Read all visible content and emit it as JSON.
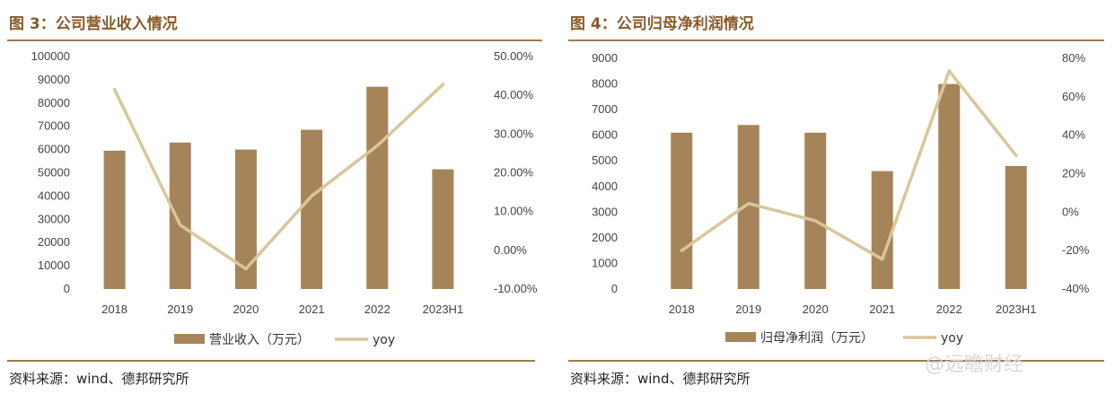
{
  "charts": [
    {
      "figure_title": "图 3：公司营业收入情况",
      "source": "资料来源：wind、德邦研究所",
      "legend": {
        "bar_label": "营业收入（万元）",
        "line_label": "yoy"
      }
    },
    {
      "figure_title": "图 4：公司归母净利润情况",
      "source": "资料来源：wind、德邦研究所",
      "legend": {
        "bar_label": "归母净利润（万元）",
        "line_label": "yoy"
      }
    }
  ],
  "watermark": "@远瞻财经",
  "colors": {
    "bar": "#a6845a",
    "line": "#d9c69a",
    "accent": "#8a5a2b"
  },
  "chart_data": [
    {
      "type": "bar",
      "categories": [
        "2018",
        "2019",
        "2020",
        "2021",
        "2022",
        "2023H1"
      ],
      "series": [
        {
          "name": "营业收入（万元）",
          "type": "bar",
          "axis": "left",
          "values": [
            59500,
            63000,
            60000,
            68500,
            87000,
            51500
          ]
        },
        {
          "name": "yoy",
          "type": "line",
          "axis": "right",
          "values": [
            41.5,
            6.5,
            -4.8,
            14.0,
            27.0,
            42.8
          ]
        }
      ],
      "left_ticks": [
        "0",
        "10000",
        "20000",
        "30000",
        "40000",
        "50000",
        "60000",
        "70000",
        "80000",
        "90000",
        "100000"
      ],
      "right_ticks": [
        "-10.00%",
        "0.00%",
        "10.00%",
        "20.00%",
        "30.00%",
        "40.00%",
        "50.00%"
      ],
      "ylim_left": [
        0,
        100000
      ],
      "ylim_right": [
        -10,
        50
      ]
    },
    {
      "type": "bar",
      "categories": [
        "2018",
        "2019",
        "2020",
        "2021",
        "2022",
        "2023H1"
      ],
      "series": [
        {
          "name": "归母净利润（万元）",
          "type": "bar",
          "axis": "left",
          "values": [
            6100,
            6400,
            6100,
            4600,
            8000,
            4800
          ]
        },
        {
          "name": "yoy",
          "type": "line",
          "axis": "right",
          "values": [
            -20,
            4.5,
            -4.5,
            -24.5,
            73.5,
            29.5
          ]
        }
      ],
      "left_ticks": [
        "0",
        "1000",
        "2000",
        "3000",
        "4000",
        "5000",
        "6000",
        "7000",
        "8000",
        "9000"
      ],
      "right_ticks": [
        "-40%",
        "-20%",
        "0%",
        "20%",
        "40%",
        "60%",
        "80%"
      ],
      "ylim_left": [
        0,
        9000
      ],
      "ylim_right": [
        -40,
        80
      ]
    }
  ]
}
